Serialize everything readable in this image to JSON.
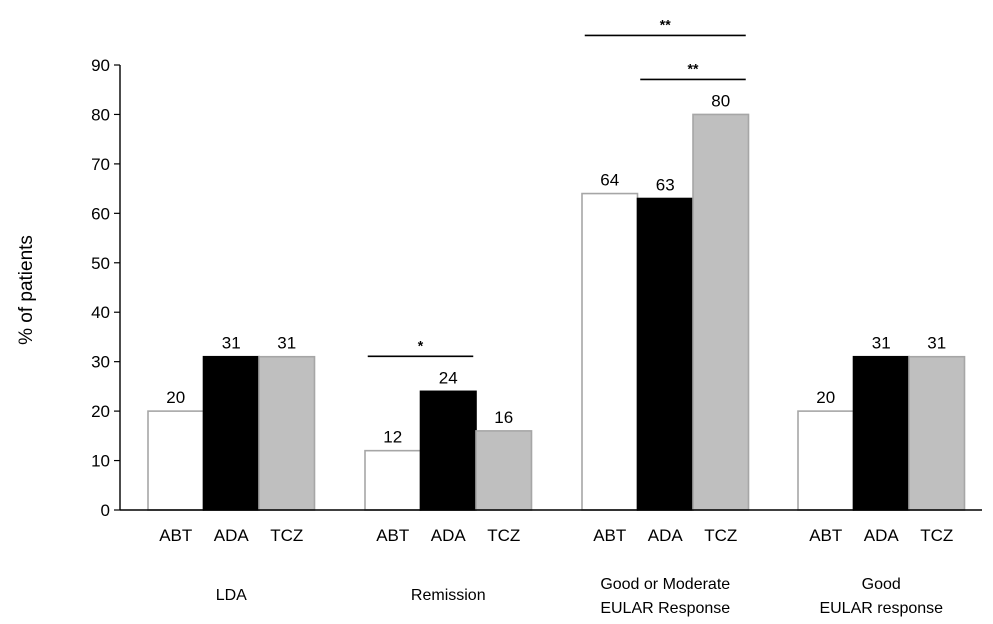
{
  "chart_data": {
    "type": "bar",
    "ylabel": "% of patients",
    "ylim": [
      0,
      90
    ],
    "yticks": [
      "0",
      "10",
      "20",
      "30",
      "40",
      "50",
      "60",
      "70",
      "80",
      "90"
    ],
    "series_labels": [
      "ABT",
      "ADA",
      "TCZ"
    ],
    "colors": {
      "ABT": "#ffffff",
      "ADA": "#000000",
      "TCZ": "#bfbfbf",
      "ABT_stroke": "#a6a6a6",
      "TCZ_stroke": "#a6a6a6",
      "axis": "#000000"
    },
    "groups": [
      {
        "label_lines": [
          "LDA"
        ],
        "values": [
          20,
          31,
          31
        ],
        "value_labels": [
          "20",
          "31",
          "31"
        ]
      },
      {
        "label_lines": [
          "Remission"
        ],
        "values": [
          12,
          24,
          16
        ],
        "value_labels": [
          "12",
          "24",
          "16"
        ]
      },
      {
        "label_lines": [
          "Good or Moderate",
          "EULAR Response"
        ],
        "values": [
          64,
          63,
          80
        ],
        "value_labels": [
          "64",
          "63",
          "80"
        ]
      },
      {
        "label_lines": [
          "Good",
          "EULAR response"
        ],
        "values": [
          20,
          31,
          31
        ],
        "value_labels": [
          "20",
          "31",
          "31"
        ]
      }
    ],
    "significance": [
      {
        "group": 1,
        "from": 0,
        "to": 1,
        "label": "*"
      },
      {
        "group": 2,
        "from": 0,
        "to": 2,
        "label": "**"
      },
      {
        "group": 2,
        "from": 1,
        "to": 2,
        "label": "**"
      }
    ]
  }
}
